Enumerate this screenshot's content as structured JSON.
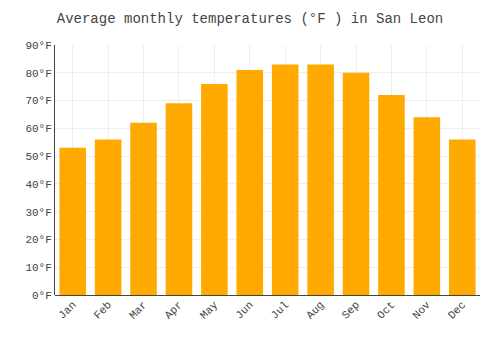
{
  "chart_data": {
    "type": "bar",
    "title": "Average monthly temperatures (°F ) in San Leon",
    "categories": [
      "Jan",
      "Feb",
      "Mar",
      "Apr",
      "May",
      "Jun",
      "Jul",
      "Aug",
      "Sep",
      "Oct",
      "Nov",
      "Dec"
    ],
    "values": [
      53,
      56,
      62,
      69,
      76,
      81,
      83,
      83,
      80,
      72,
      64,
      56
    ],
    "color": "#FFAA00",
    "ylim": [
      0,
      90
    ],
    "yticks": [
      {
        "value": 0,
        "label": "0°F"
      },
      {
        "value": 10,
        "label": "10°F"
      },
      {
        "value": 20,
        "label": "20°F"
      },
      {
        "value": 30,
        "label": "30°F"
      },
      {
        "value": 40,
        "label": "40°F"
      },
      {
        "value": 50,
        "label": "50°F"
      },
      {
        "value": 60,
        "label": "60°F"
      },
      {
        "value": 70,
        "label": "70°F"
      },
      {
        "value": 80,
        "label": "80°F"
      },
      {
        "value": 90,
        "label": "90°F"
      }
    ],
    "grid": true
  }
}
